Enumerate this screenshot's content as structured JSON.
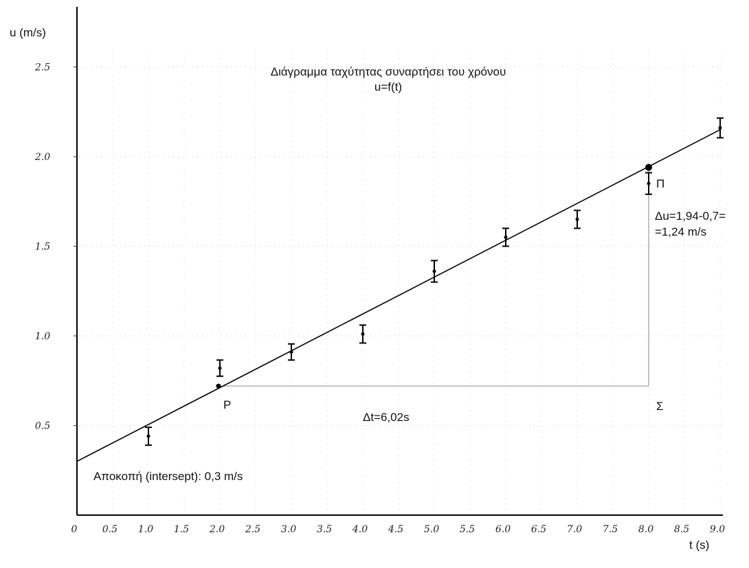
{
  "chart_data": {
    "type": "scatter",
    "title": "Διάγραμμα ταχύτητας συναρτήσει του χρόνου",
    "subtitle": "u=f(t)",
    "xlabel": "t (s)",
    "ylabel": "u (m/s)",
    "xlim": [
      0,
      9.0
    ],
    "ylim": [
      0,
      2.5
    ],
    "x_ticks": [
      "0",
      "0.5",
      "1.0",
      "1.5",
      "2.0",
      "2.5",
      "3.0",
      "3.5",
      "4.0",
      "4.5",
      "5.0",
      "5.5",
      "6.0",
      "6.5",
      "7.0",
      "7.5",
      "8.0",
      "8.5",
      "9.0"
    ],
    "y_ticks": [
      "0.5",
      "1.0",
      "1.5",
      "2.0",
      "2.5"
    ],
    "grid": true,
    "series": [
      {
        "points": [
          {
            "x": 1.0,
            "y": 0.44,
            "err": 0.05
          },
          {
            "x": 2.0,
            "y": 0.82,
            "err": 0.045
          },
          {
            "x": 3.0,
            "y": 0.91,
            "err": 0.045
          },
          {
            "x": 4.0,
            "y": 1.01,
            "err": 0.05
          },
          {
            "x": 5.0,
            "y": 1.36,
            "err": 0.06
          },
          {
            "x": 6.0,
            "y": 1.55,
            "err": 0.05
          },
          {
            "x": 7.0,
            "y": 1.65,
            "err": 0.05
          },
          {
            "x": 8.0,
            "y": 1.85,
            "err": 0.06
          },
          {
            "x": 9.0,
            "y": 2.16,
            "err": 0.055
          }
        ]
      }
    ],
    "fit_line": {
      "x": [
        0,
        9.0
      ],
      "y": [
        0.3,
        2.15
      ]
    },
    "triangle": {
      "P": [
        1.98,
        0.72
      ],
      "Pi": [
        8.0,
        1.94
      ],
      "Sigma": [
        8.0,
        0.72
      ]
    },
    "annotations": {
      "P": "P",
      "Pi": "Π",
      "Sigma": "Σ",
      "delta_u_1": "Δu=1,94-0,7=",
      "delta_u_2": "=1,24 m/s",
      "delta_t": "Δt=6,02s",
      "intercept": "Αποκοπή (intersept): 0,3 m/s"
    }
  }
}
